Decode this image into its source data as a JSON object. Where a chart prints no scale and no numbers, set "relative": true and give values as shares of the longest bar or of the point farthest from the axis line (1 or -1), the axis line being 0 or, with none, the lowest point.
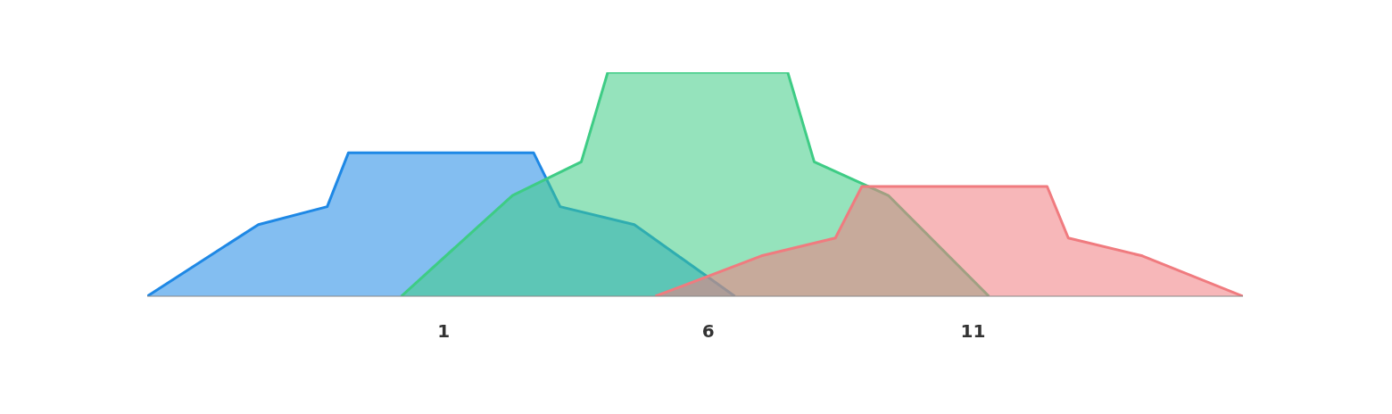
{
  "chart_data": {
    "type": "area",
    "relative": true,
    "xlim": [
      -4.6,
      16.1
    ],
    "xticks": [
      1,
      6,
      11
    ],
    "grid": false,
    "legend": false,
    "series": [
      {
        "color": "#1e88e5",
        "x": [
          -4.6,
          -2.5,
          -1.2,
          -0.8,
          2.7,
          3.2,
          4.6,
          6.5
        ],
        "values": [
          0,
          0.32,
          0.4,
          0.64,
          0.64,
          0.4,
          0.32,
          0
        ]
      },
      {
        "color": "#3ecc85",
        "x": [
          0.2,
          2.3,
          3.6,
          4.1,
          7.5,
          8.0,
          9.4,
          11.3
        ],
        "values": [
          0,
          0.45,
          0.6,
          1,
          1,
          0.6,
          0.45,
          0
        ]
      },
      {
        "color": "#f07b7f",
        "x": [
          5.0,
          7.0,
          8.4,
          8.9,
          12.4,
          12.8,
          14.2,
          16.1
        ],
        "values": [
          0,
          0.18,
          0.26,
          0.49,
          0.49,
          0.26,
          0.18,
          0
        ]
      }
    ]
  }
}
